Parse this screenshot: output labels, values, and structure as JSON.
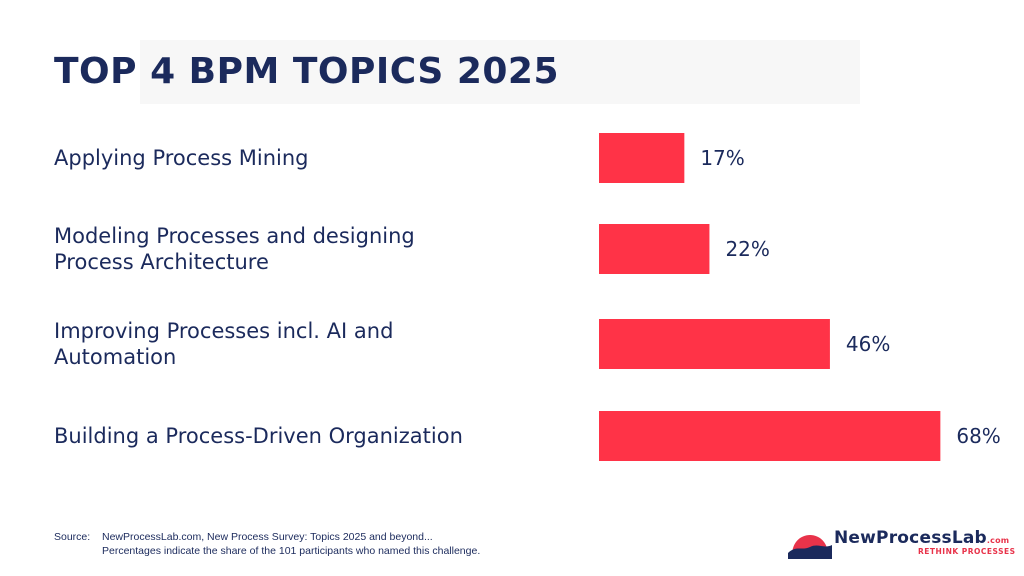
{
  "title": "TOP 4 BPM TOPICS 2025",
  "colors": {
    "bar": "#ff3347",
    "text": "#1b2a5c",
    "accent": "#e8334a"
  },
  "chart_data": {
    "type": "bar",
    "orientation": "horizontal",
    "title": "TOP 4 BPM TOPICS 2025",
    "categories": [
      "Applying Process Mining",
      "Modeling Processes and designing Process Architecture",
      "Improving Processes incl. AI and Automation",
      "Building a Process-Driven Organization"
    ],
    "category_lines": [
      [
        "Applying Process Mining"
      ],
      [
        "Modeling Processes and designing",
        "Process Architecture"
      ],
      [
        "Improving Processes incl. AI and",
        "Automation"
      ],
      [
        "Building a Process-Driven Organization"
      ]
    ],
    "values": [
      17,
      22,
      46,
      68
    ],
    "value_labels": [
      "17%",
      "22%",
      "46%",
      "68%"
    ],
    "unit": "%",
    "xlim": [
      0,
      100
    ],
    "grid": false,
    "legend": "none"
  },
  "footer": {
    "source_key": "Source:",
    "source_text": "NewProcessLab.com, New Process Survey: Topics 2025 and beyond...",
    "note": "Percentages indicate the share of the 101 participants who named this challenge."
  },
  "logo": {
    "name": "NewProcessLab",
    "tld": ".com",
    "tagline": "RETHINK PROCESSES",
    "icon": "wave-logo-icon"
  }
}
